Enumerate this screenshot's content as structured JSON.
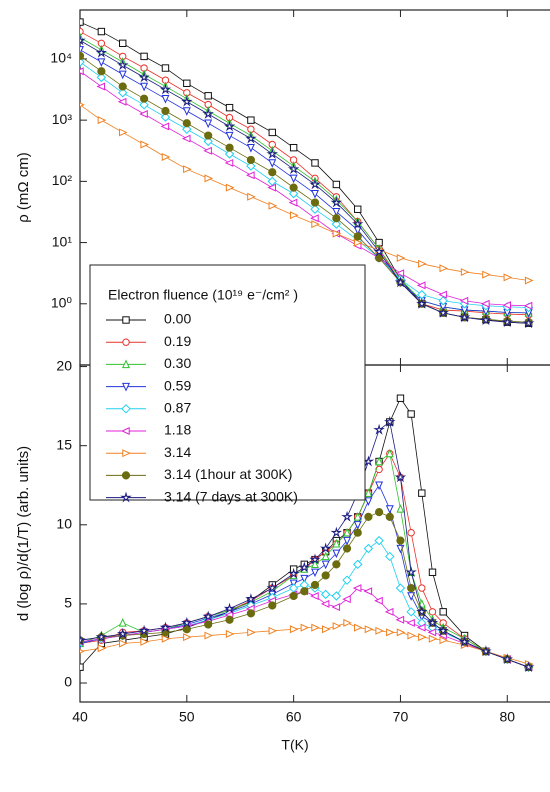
{
  "chart_data": [
    {
      "type": "line",
      "yscale": "log",
      "ylabel": "ρ (mΩ cm)",
      "xlim": [
        40,
        84
      ],
      "ylim": [
        0.1,
        63000
      ],
      "yticks": [
        {
          "value": 1,
          "label": "10⁰"
        },
        {
          "value": 10,
          "label": "10¹"
        },
        {
          "value": 100,
          "label": "10²"
        },
        {
          "value": 1000,
          "label": "10³"
        },
        {
          "value": 10000,
          "label": "10⁴"
        }
      ],
      "legend_title": "Electron fluence (10¹⁹ e⁻/cm² )",
      "x": [
        40,
        42,
        44,
        46,
        48,
        50,
        52,
        54,
        56,
        58,
        60,
        62,
        64,
        66,
        68,
        70,
        72,
        74,
        76,
        78,
        80,
        82
      ],
      "series": [
        {
          "name": "0.00",
          "color": "#111111",
          "marker": "square",
          "values": [
            40000,
            28000,
            18000,
            11000,
            7100,
            4000,
            2500,
            1600,
            1000,
            630,
            355,
            200,
            89,
            35,
            10,
            2.5,
            1,
            0.71,
            0.6,
            0.55,
            0.5,
            0.48
          ]
        },
        {
          "name": "0.19",
          "color": "#e8322b",
          "marker": "circle",
          "values": [
            28000,
            18000,
            11000,
            7100,
            4500,
            2800,
            1800,
            1100,
            710,
            400,
            224,
            112,
            56,
            22,
            7.9,
            2.24,
            1,
            0.79,
            0.76,
            0.71,
            0.68,
            0.66
          ]
        },
        {
          "name": "0.30",
          "color": "#2fc12f",
          "marker": "triangle-up",
          "values": [
            22400,
            14100,
            8900,
            5600,
            3550,
            2240,
            1410,
            890,
            560,
            316,
            178,
            100,
            50,
            22,
            7.9,
            2.5,
            1.12,
            0.89,
            0.79,
            0.76,
            0.72,
            0.71
          ]
        },
        {
          "name": "0.59",
          "color": "#2233dd",
          "marker": "triangle-down",
          "values": [
            14100,
            8900,
            5600,
            3550,
            2240,
            1410,
            890,
            560,
            355,
            200,
            112,
            63,
            32,
            16,
            6.3,
            2.24,
            1.12,
            0.89,
            0.79,
            0.76,
            0.72,
            0.71
          ]
        },
        {
          "name": "0.87",
          "color": "#20d0f0",
          "marker": "diamond",
          "values": [
            8900,
            5000,
            2800,
            1780,
            1120,
            710,
            450,
            280,
            178,
            100,
            63,
            35,
            20,
            11,
            5.6,
            2.5,
            1.41,
            1.12,
            1,
            0.93,
            0.89,
            0.87
          ]
        },
        {
          "name": " 1.18",
          "color": "#e020d8",
          "marker": "triangle-left",
          "values": [
            6300,
            3550,
            2000,
            1260,
            790,
            500,
            316,
            200,
            126,
            79,
            45,
            25,
            14,
            8.9,
            5.6,
            3.16,
            2,
            1.41,
            1.12,
            1,
            0.95,
            0.93
          ]
        },
        {
          "name": "3.14",
          "color": "#f08020",
          "marker": "triangle-right",
          "values": [
            1780,
            1000,
            630,
            400,
            250,
            158,
            112,
            79,
            56,
            40,
            28,
            20,
            14,
            10,
            7.6,
            5.6,
            4.5,
            3.8,
            3.3,
            3,
            2.7,
            2.4
          ]
        },
        {
          "name": "3.14 (1hour at 300K)",
          "color": "#6b6b10",
          "marker": "filled-circle",
          "values": [
            11200,
            6300,
            3550,
            2240,
            1410,
            890,
            560,
            355,
            224,
            141,
            79,
            45,
            25,
            12.6,
            5.6,
            2.24,
            1,
            0.71,
            0.6,
            0.56,
            0.52,
            0.5
          ]
        },
        {
          "name": "3.14 (7 days at 300K)",
          "color": "#1a1a80",
          "marker": "star",
          "values": [
            20000,
            12600,
            7900,
            5000,
            3160,
            2000,
            1260,
            790,
            500,
            280,
            158,
            89,
            45,
            20,
            7.1,
            2.24,
            1,
            0.71,
            0.6,
            0.54,
            0.5,
            0.48
          ]
        }
      ]
    },
    {
      "type": "line",
      "ylabel": "d (log ρ)/d(1/T)  (arb. units)",
      "xlabel": "T(K)",
      "xlim": [
        40,
        84
      ],
      "ylim": [
        -1.2,
        20.1
      ],
      "xticks": [
        40,
        50,
        60,
        70,
        80
      ],
      "yticks": [
        0,
        5,
        10,
        15,
        20
      ],
      "x": [
        40,
        42,
        44,
        46,
        48,
        50,
        52,
        54,
        56,
        58,
        60,
        61,
        62,
        63,
        64,
        65,
        66,
        67,
        68,
        69,
        70,
        71,
        72,
        73,
        74,
        76,
        78,
        80,
        82
      ],
      "series": [
        {
          "color": "#111111",
          "marker": "square",
          "values": [
            1.0,
            2.5,
            2.7,
            2.9,
            3.1,
            3.5,
            4.0,
            4.5,
            5.2,
            6.2,
            7.2,
            7.5,
            7.8,
            8.3,
            9.0,
            9.5,
            10.5,
            12,
            14,
            16.5,
            18,
            17,
            12,
            7,
            4.5,
            3,
            2,
            1.5,
            1.0
          ]
        },
        {
          "color": "#e8322b",
          "marker": "circle",
          "values": [
            2.5,
            2.7,
            3.2,
            3.3,
            3.5,
            3.8,
            4.2,
            4.6,
            5.2,
            6.0,
            6.8,
            7.2,
            7.8,
            8.3,
            8.8,
            9.5,
            10.5,
            12,
            13.5,
            14.5,
            13,
            9.5,
            6,
            4.5,
            3.8,
            2.8,
            2.0,
            1.5,
            1.0
          ]
        },
        {
          "color": "#2fc12f",
          "marker": "triangle-up",
          "values": [
            2.5,
            3.0,
            3.8,
            3.2,
            3.4,
            3.8,
            4.2,
            4.6,
            5.1,
            5.8,
            6.8,
            7.2,
            7.5,
            8.0,
            8.8,
            9.5,
            10.5,
            12,
            14,
            14.5,
            11,
            7,
            5,
            4,
            3.5,
            2.8,
            2.0,
            1.5,
            1.0
          ]
        },
        {
          "color": "#2233dd",
          "marker": "triangle-down",
          "values": [
            2.5,
            2.8,
            3.0,
            3.2,
            3.4,
            3.7,
            4.1,
            4.5,
            5.0,
            5.6,
            6.3,
            6.6,
            7.0,
            7.5,
            8.2,
            9.0,
            10,
            11.5,
            12.5,
            11,
            8.5,
            5.5,
            4.2,
            3.8,
            3.3,
            2.6,
            2.0,
            1.5,
            1.0
          ]
        },
        {
          "color": "#20d0f0",
          "marker": "diamond",
          "values": [
            2.6,
            2.8,
            3.0,
            3.2,
            3.4,
            3.6,
            4.0,
            4.4,
            4.9,
            5.4,
            6.0,
            6.2,
            6.0,
            5.6,
            5.5,
            6.5,
            7.5,
            8.5,
            9.0,
            8.0,
            6.0,
            4.5,
            3.8,
            3.5,
            3.2,
            2.6,
            2.0,
            1.5,
            1.0
          ]
        },
        {
          "color": "#e020d8",
          "marker": "triangle-left",
          "values": [
            2.6,
            2.8,
            3.0,
            3.2,
            3.4,
            3.6,
            3.9,
            4.3,
            4.7,
            5.2,
            5.6,
            5.8,
            5.5,
            5.0,
            4.8,
            5.3,
            6.0,
            5.8,
            5.2,
            4.5,
            4.0,
            3.8,
            3.5,
            3.2,
            3.0,
            2.5,
            2.0,
            1.5,
            1.0
          ]
        },
        {
          "color": "#f08020",
          "marker": "triangle-right",
          "values": [
            2.0,
            2.2,
            2.5,
            2.6,
            2.8,
            2.9,
            3.0,
            3.1,
            3.2,
            3.3,
            3.4,
            3.5,
            3.5,
            3.4,
            3.6,
            3.8,
            3.5,
            3.4,
            3.3,
            3.2,
            3.2,
            3.0,
            2.9,
            2.8,
            2.7,
            2.4,
            2.0,
            1.6,
            1.2
          ]
        },
        {
          "color": "#6b6b10",
          "marker": "filled-circle",
          "values": [
            2.7,
            2.9,
            3.0,
            3.1,
            3.2,
            3.4,
            3.7,
            4.0,
            4.4,
            4.9,
            5.5,
            5.8,
            6.2,
            6.8,
            7.5,
            8.5,
            9.5,
            10.5,
            10.8,
            10.5,
            9,
            6,
            4.5,
            3.8,
            3.3,
            2.6,
            2.0,
            1.5,
            1.0
          ]
        },
        {
          "color": "#1a1a80",
          "marker": "star",
          "values": [
            2.7,
            2.9,
            3.1,
            3.3,
            3.5,
            3.8,
            4.2,
            4.7,
            5.3,
            6.0,
            6.9,
            7.3,
            7.8,
            8.5,
            9.5,
            10.5,
            12,
            14,
            16,
            16.5,
            13,
            7,
            4.5,
            3.8,
            3.3,
            2.6,
            2.0,
            1.5,
            1.0
          ]
        }
      ]
    }
  ]
}
